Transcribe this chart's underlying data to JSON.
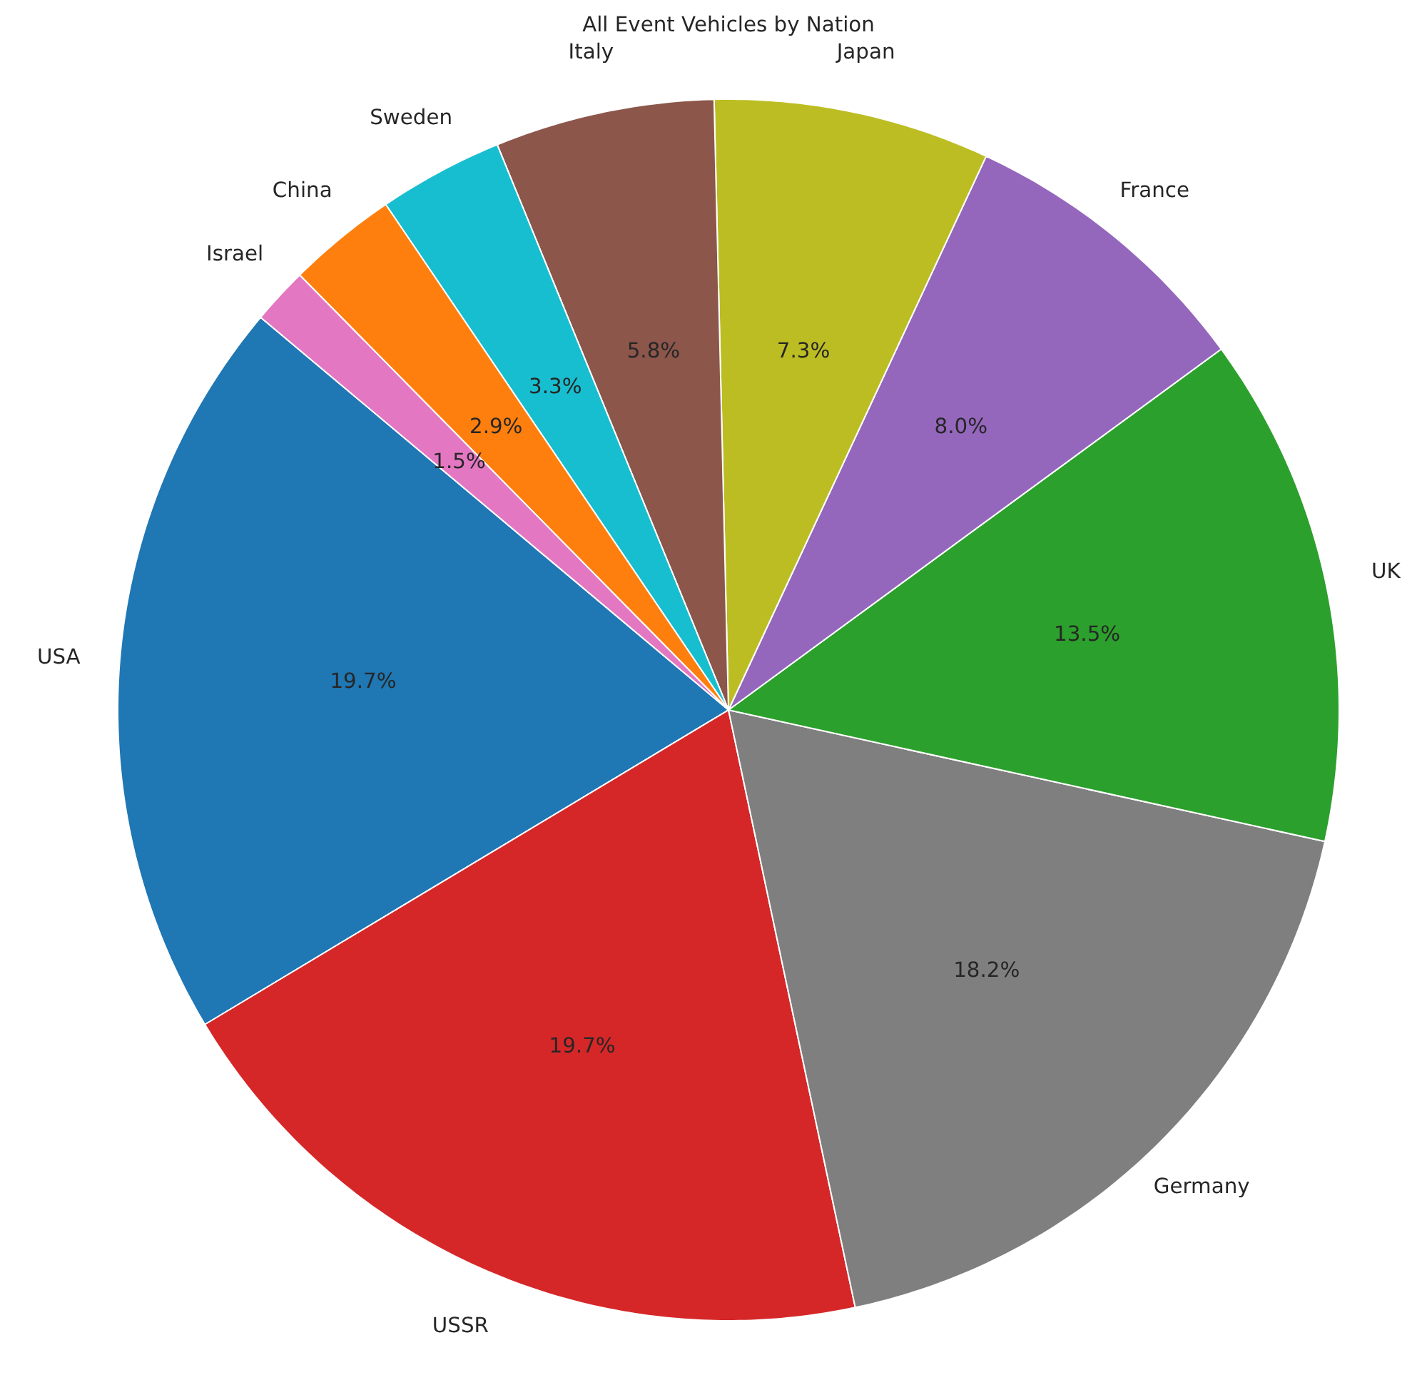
{
  "chart_data": {
    "type": "pie",
    "title": "All Event Vehicles by Nation",
    "categories": [
      "USA",
      "USSR",
      "Germany",
      "UK",
      "France",
      "Japan",
      "Italy",
      "Sweden",
      "China",
      "Israel"
    ],
    "values": [
      19.7,
      19.7,
      18.2,
      13.5,
      8.0,
      7.3,
      5.8,
      3.3,
      2.9,
      1.5
    ],
    "colors": [
      "#1f77b4",
      "#d62728",
      "#7f7f7f",
      "#2ca02c",
      "#9467bd",
      "#bcbd22",
      "#8c564b",
      "#17becf",
      "#ff7f0e",
      "#e377c2"
    ],
    "value_labels": [
      "19.7%",
      "19.7%",
      "18.2%",
      "13.5%",
      "8.0%",
      "7.3%",
      "5.8%",
      "3.3%",
      "2.9%",
      "1.5%"
    ]
  }
}
